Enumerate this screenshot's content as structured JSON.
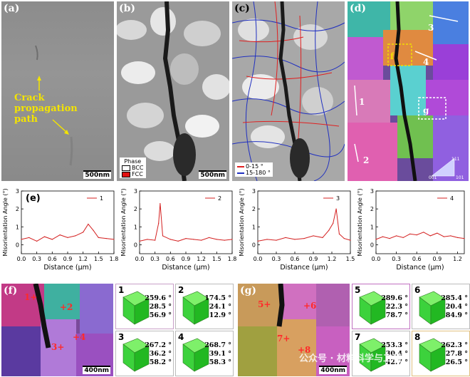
{
  "panels": {
    "a": {
      "label": "(a)",
      "scale": "500nm",
      "annotation_lines": [
        "Crack",
        "propagation",
        "path"
      ]
    },
    "b": {
      "label": "(b)",
      "scale": "500nm",
      "legend_title": "Phase",
      "legend": [
        "BCC",
        "FCC"
      ],
      "colors": {
        "BCC": "#ffffff",
        "FCC": "#e01010"
      }
    },
    "c": {
      "label": "(c)",
      "legend": [
        "0-15 °",
        "15-180 °"
      ],
      "colors": {
        "low": "#e02020",
        "high": "#2030c0"
      }
    },
    "d": {
      "label": "(d)",
      "markers": [
        "1",
        "2",
        "3",
        "4"
      ],
      "boxes": [
        "f",
        "g"
      ],
      "ipf": [
        "111",
        "001",
        "101"
      ]
    },
    "e": {
      "label": "(e)"
    },
    "f": {
      "label": "(f)",
      "scale": "400nm",
      "markers": [
        "1+",
        "+2",
        "3+",
        "+4"
      ]
    },
    "g": {
      "label": "(g)",
      "scale": "400nm",
      "markers": [
        "5+",
        "+6",
        "7+",
        "+8"
      ],
      "watermark": "公众号 · 材料科学与工程"
    }
  },
  "chart_data": [
    {
      "type": "line",
      "id": "1",
      "legend": "1",
      "xlabel": "Distance (μm)",
      "ylabel": "Misorientation Angle (°)",
      "xlim": [
        0,
        1.8
      ],
      "ylim": [
        -0.5,
        3
      ],
      "xticks": [
        "0.0",
        "0.3",
        "0.6",
        "0.9",
        "1.2",
        "1.5",
        "1.8"
      ],
      "yticks": [
        "0",
        "1",
        "2",
        "3"
      ],
      "x": [
        0.0,
        0.15,
        0.3,
        0.45,
        0.6,
        0.75,
        0.9,
        1.05,
        1.2,
        1.3,
        1.4,
        1.5,
        1.65,
        1.8
      ],
      "y": [
        0.3,
        0.4,
        0.2,
        0.45,
        0.3,
        0.55,
        0.4,
        0.5,
        0.7,
        1.15,
        0.8,
        0.4,
        0.35,
        0.3
      ]
    },
    {
      "type": "line",
      "id": "2",
      "legend": "2",
      "xlabel": "Distance (μm)",
      "ylabel": "Misorientation Angle (°)",
      "xlim": [
        0,
        1.8
      ],
      "ylim": [
        -0.5,
        3
      ],
      "xticks": [
        "0.0",
        "0.3",
        "0.6",
        "0.9",
        "1.2",
        "1.5",
        "1.8"
      ],
      "yticks": [
        "0",
        "1",
        "2",
        "3"
      ],
      "x": [
        0.0,
        0.15,
        0.3,
        0.37,
        0.4,
        0.45,
        0.6,
        0.75,
        0.9,
        1.05,
        1.2,
        1.35,
        1.5,
        1.65,
        1.8
      ],
      "y": [
        0.2,
        0.3,
        0.25,
        1.2,
        2.3,
        0.5,
        0.3,
        0.2,
        0.35,
        0.3,
        0.25,
        0.4,
        0.3,
        0.25,
        0.3
      ]
    },
    {
      "type": "line",
      "id": "3",
      "legend": "3",
      "xlabel": "Distance (μm)",
      "ylabel": "Misorientation Angle (°)",
      "xlim": [
        0,
        1.5
      ],
      "ylim": [
        -0.5,
        3
      ],
      "xticks": [
        "0.0",
        "0.3",
        "0.6",
        "0.9",
        "1.2",
        "1.5"
      ],
      "yticks": [
        "0",
        "1",
        "2",
        "3"
      ],
      "x": [
        0.0,
        0.15,
        0.3,
        0.45,
        0.6,
        0.75,
        0.9,
        1.05,
        1.15,
        1.22,
        1.27,
        1.32,
        1.4,
        1.5
      ],
      "y": [
        0.2,
        0.3,
        0.25,
        0.4,
        0.3,
        0.35,
        0.5,
        0.4,
        0.8,
        1.2,
        2.0,
        0.6,
        0.35,
        0.25
      ]
    },
    {
      "type": "line",
      "id": "4",
      "legend": "4",
      "xlabel": "Distance (μm)",
      "ylabel": "Misorientation Angle (°)",
      "xlim": [
        0,
        1.3
      ],
      "ylim": [
        -0.5,
        3
      ],
      "xticks": [
        "0.0",
        "0.3",
        "0.6",
        "0.9",
        "1.2"
      ],
      "yticks": [
        "0",
        "1",
        "2",
        "3"
      ],
      "x": [
        0.0,
        0.1,
        0.2,
        0.3,
        0.4,
        0.5,
        0.6,
        0.7,
        0.8,
        0.9,
        1.0,
        1.1,
        1.2,
        1.3
      ],
      "y": [
        0.3,
        0.45,
        0.35,
        0.5,
        0.4,
        0.6,
        0.55,
        0.7,
        0.5,
        0.65,
        0.45,
        0.5,
        0.4,
        0.35
      ]
    }
  ],
  "orientations": [
    {
      "id": "1",
      "angles": [
        "259.6 °",
        "28.5 °",
        "56.9 °"
      ]
    },
    {
      "id": "2",
      "angles": [
        "174.5 °",
        "24.1 °",
        "12.9 °"
      ]
    },
    {
      "id": "3",
      "angles": [
        "267.2 °",
        "36.2 °",
        "58.2 °"
      ]
    },
    {
      "id": "4",
      "angles": [
        "268.7 °",
        "39.1 °",
        "58.3 °"
      ]
    },
    {
      "id": "5",
      "angles": [
        "289.6 °",
        "22.3 °",
        "78.7 °"
      ]
    },
    {
      "id": "6",
      "angles": [
        "285.4 °",
        "20.4 °",
        "84.9 °"
      ]
    },
    {
      "id": "7",
      "angles": [
        "253.3 °",
        "30.4 °",
        "42.7 °"
      ]
    },
    {
      "id": "8",
      "angles": [
        "262.3 °",
        "27.8 °",
        "26.5 °"
      ]
    }
  ]
}
